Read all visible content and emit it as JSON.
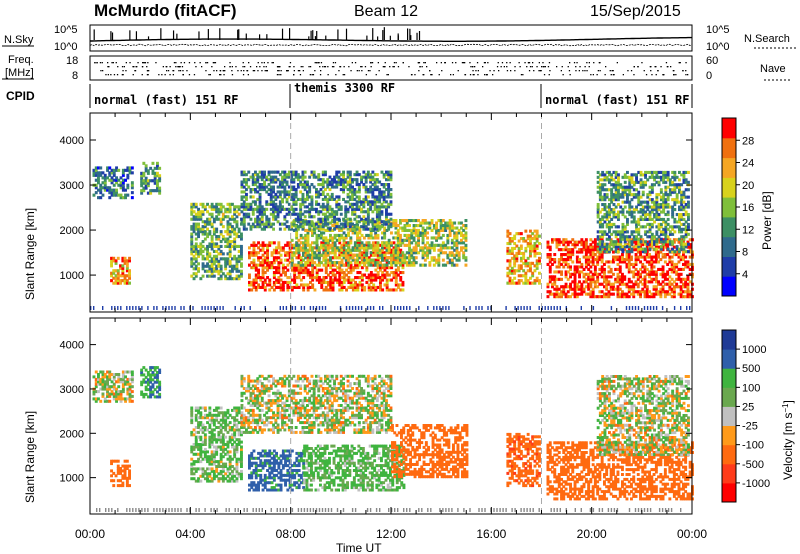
{
  "header": {
    "title": "McMurdo (fitACF)",
    "beam": "Beam 12",
    "date": "15/Sep/2015"
  },
  "status_panels": {
    "nsky_label": "N.Sky",
    "nsearch_label": "N.Search",
    "noise_ticks": [
      "10^5",
      "10^0"
    ],
    "freq_label_1": "Freq.",
    "freq_label_2": "[MHz]",
    "freq_ticks": [
      "18",
      "8"
    ],
    "nave_label": "Nave",
    "nave_ticks": [
      "60",
      "0"
    ],
    "cpid_label": "CPID",
    "cpid_segments": [
      {
        "label": "normal (fast) 151 RF",
        "start_hour": 0,
        "end_hour": 8
      },
      {
        "label": "themis 3300 RF",
        "start_hour": 8,
        "end_hour": 18
      },
      {
        "label": "normal (fast) 151 RF",
        "start_hour": 18,
        "end_hour": 24
      }
    ]
  },
  "chart_data": [
    {
      "type": "heatmap",
      "name": "power",
      "ylabel": "Slant Range [km]",
      "xlabel": "",
      "ylim": [
        180,
        4600
      ],
      "xlim": [
        0,
        24
      ],
      "yticks": [
        1000,
        2000,
        3000,
        4000
      ],
      "colorbar_label": "Power [dB]",
      "colorbar_ticks": [
        "28",
        "24",
        "20",
        "16",
        "12",
        "8",
        "4"
      ],
      "colorbar_colors": [
        "#0000ff",
        "#1f3da8",
        "#2f6a8c",
        "#3c8f64",
        "#7fbf3a",
        "#d8d21c",
        "#f5a623",
        "#f0700f",
        "#ff0000"
      ],
      "echo_regions": [
        {
          "t0": 0.1,
          "t1": 1.7,
          "r0": 2700,
          "r1": 3400,
          "level": 0.3
        },
        {
          "t0": 0.8,
          "t1": 1.6,
          "r0": 800,
          "r1": 1400,
          "level": 0.75
        },
        {
          "t0": 2.0,
          "t1": 2.8,
          "r0": 2800,
          "r1": 3500,
          "level": 0.35
        },
        {
          "t0": 4.0,
          "t1": 6.0,
          "r0": 900,
          "r1": 2600,
          "level": 0.45
        },
        {
          "t0": 6.3,
          "t1": 12.5,
          "r0": 650,
          "r1": 1700,
          "level": 0.85
        },
        {
          "t0": 8.0,
          "t1": 15.0,
          "r0": 1200,
          "r1": 2200,
          "level": 0.55
        },
        {
          "t0": 6.0,
          "t1": 12.0,
          "r0": 2000,
          "r1": 3300,
          "level": 0.35
        },
        {
          "t0": 16.6,
          "t1": 17.9,
          "r0": 800,
          "r1": 2000,
          "level": 0.7
        },
        {
          "t0": 18.2,
          "t1": 24.0,
          "r0": 500,
          "r1": 1800,
          "level": 0.9
        },
        {
          "t0": 20.2,
          "t1": 23.8,
          "r0": 1500,
          "r1": 3300,
          "level": 0.4
        }
      ]
    },
    {
      "type": "heatmap",
      "name": "velocity",
      "ylabel": "Slant Range [km]",
      "xlabel": "Time UT",
      "ylim": [
        180,
        4600
      ],
      "xlim": [
        0,
        24
      ],
      "yticks": [
        1000,
        2000,
        3000,
        4000
      ],
      "xticks": [
        "00:00",
        "04:00",
        "08:00",
        "12:00",
        "16:00",
        "20:00",
        "00:00"
      ],
      "colorbar_label": "Velocity [m s^-1]",
      "colorbar_ticks": [
        "1000",
        "500",
        "100",
        "25",
        "-25",
        "-100",
        "-500",
        "-1000"
      ],
      "colorbar_colors": [
        "#ff0000",
        "#ff3b1a",
        "#ff6a10",
        "#ff9a1a",
        "#c0c0c0",
        "#6aa84f",
        "#3fb43f",
        "#2f5faa",
        "#1f3a96"
      ],
      "echo_regions": [
        {
          "t0": 0.1,
          "t1": 1.7,
          "r0": 2700,
          "r1": 3400,
          "velocity": 25
        },
        {
          "t0": 0.8,
          "t1": 1.6,
          "r0": 800,
          "r1": 1400,
          "velocity": -300
        },
        {
          "t0": 2.0,
          "t1": 2.8,
          "r0": 2800,
          "r1": 3500,
          "velocity": 500
        },
        {
          "t0": 4.0,
          "t1": 6.0,
          "r0": 900,
          "r1": 2600,
          "velocity": 100
        },
        {
          "t0": 6.3,
          "t1": 8.5,
          "r0": 700,
          "r1": 1600,
          "velocity": 600
        },
        {
          "t0": 8.5,
          "t1": 12.5,
          "r0": 700,
          "r1": 1700,
          "velocity": 150
        },
        {
          "t0": 12.0,
          "t1": 15.0,
          "r0": 1000,
          "r1": 2200,
          "velocity": -300
        },
        {
          "t0": 6.0,
          "t1": 12.0,
          "r0": 2000,
          "r1": 3300,
          "velocity": 25
        },
        {
          "t0": 16.6,
          "t1": 17.9,
          "r0": 800,
          "r1": 2000,
          "velocity": -400
        },
        {
          "t0": 18.2,
          "t1": 24.0,
          "r0": 500,
          "r1": 1800,
          "velocity": -300
        },
        {
          "t0": 20.2,
          "t1": 23.8,
          "r0": 1500,
          "r1": 3300,
          "velocity": 25
        }
      ]
    }
  ]
}
